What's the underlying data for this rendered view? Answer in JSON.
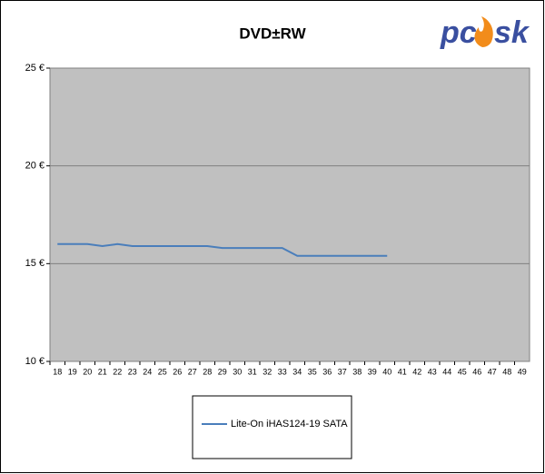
{
  "logo": {
    "left": "pc",
    "right": "sk"
  },
  "chart_data": {
    "type": "line",
    "title": "DVD±RW",
    "categories": [
      18,
      19,
      20,
      21,
      22,
      23,
      24,
      25,
      26,
      27,
      28,
      29,
      30,
      31,
      32,
      33,
      34,
      35,
      36,
      37,
      38,
      39,
      40,
      41,
      42,
      43,
      44,
      45,
      46,
      47,
      48,
      49
    ],
    "series": [
      {
        "name": "Lite-On iHAS124-19 SATA",
        "color": "#4a7ebb",
        "values": [
          16.0,
          16.0,
          16.0,
          15.9,
          16.0,
          15.9,
          15.9,
          15.9,
          15.9,
          15.9,
          15.9,
          15.8,
          15.8,
          15.8,
          15.8,
          15.8,
          15.4,
          15.4,
          15.4,
          15.4,
          15.4,
          15.4,
          15.4,
          null,
          null,
          null,
          null,
          null,
          null,
          null,
          null,
          null
        ]
      }
    ],
    "ylim": [
      10,
      25
    ],
    "yticks": [
      {
        "value": 10,
        "label": "10 €"
      },
      {
        "value": 15,
        "label": "15 €"
      },
      {
        "value": 20,
        "label": "20 €"
      },
      {
        "value": 25,
        "label": "25 €"
      }
    ],
    "grid": true,
    "legend": "bottom"
  }
}
